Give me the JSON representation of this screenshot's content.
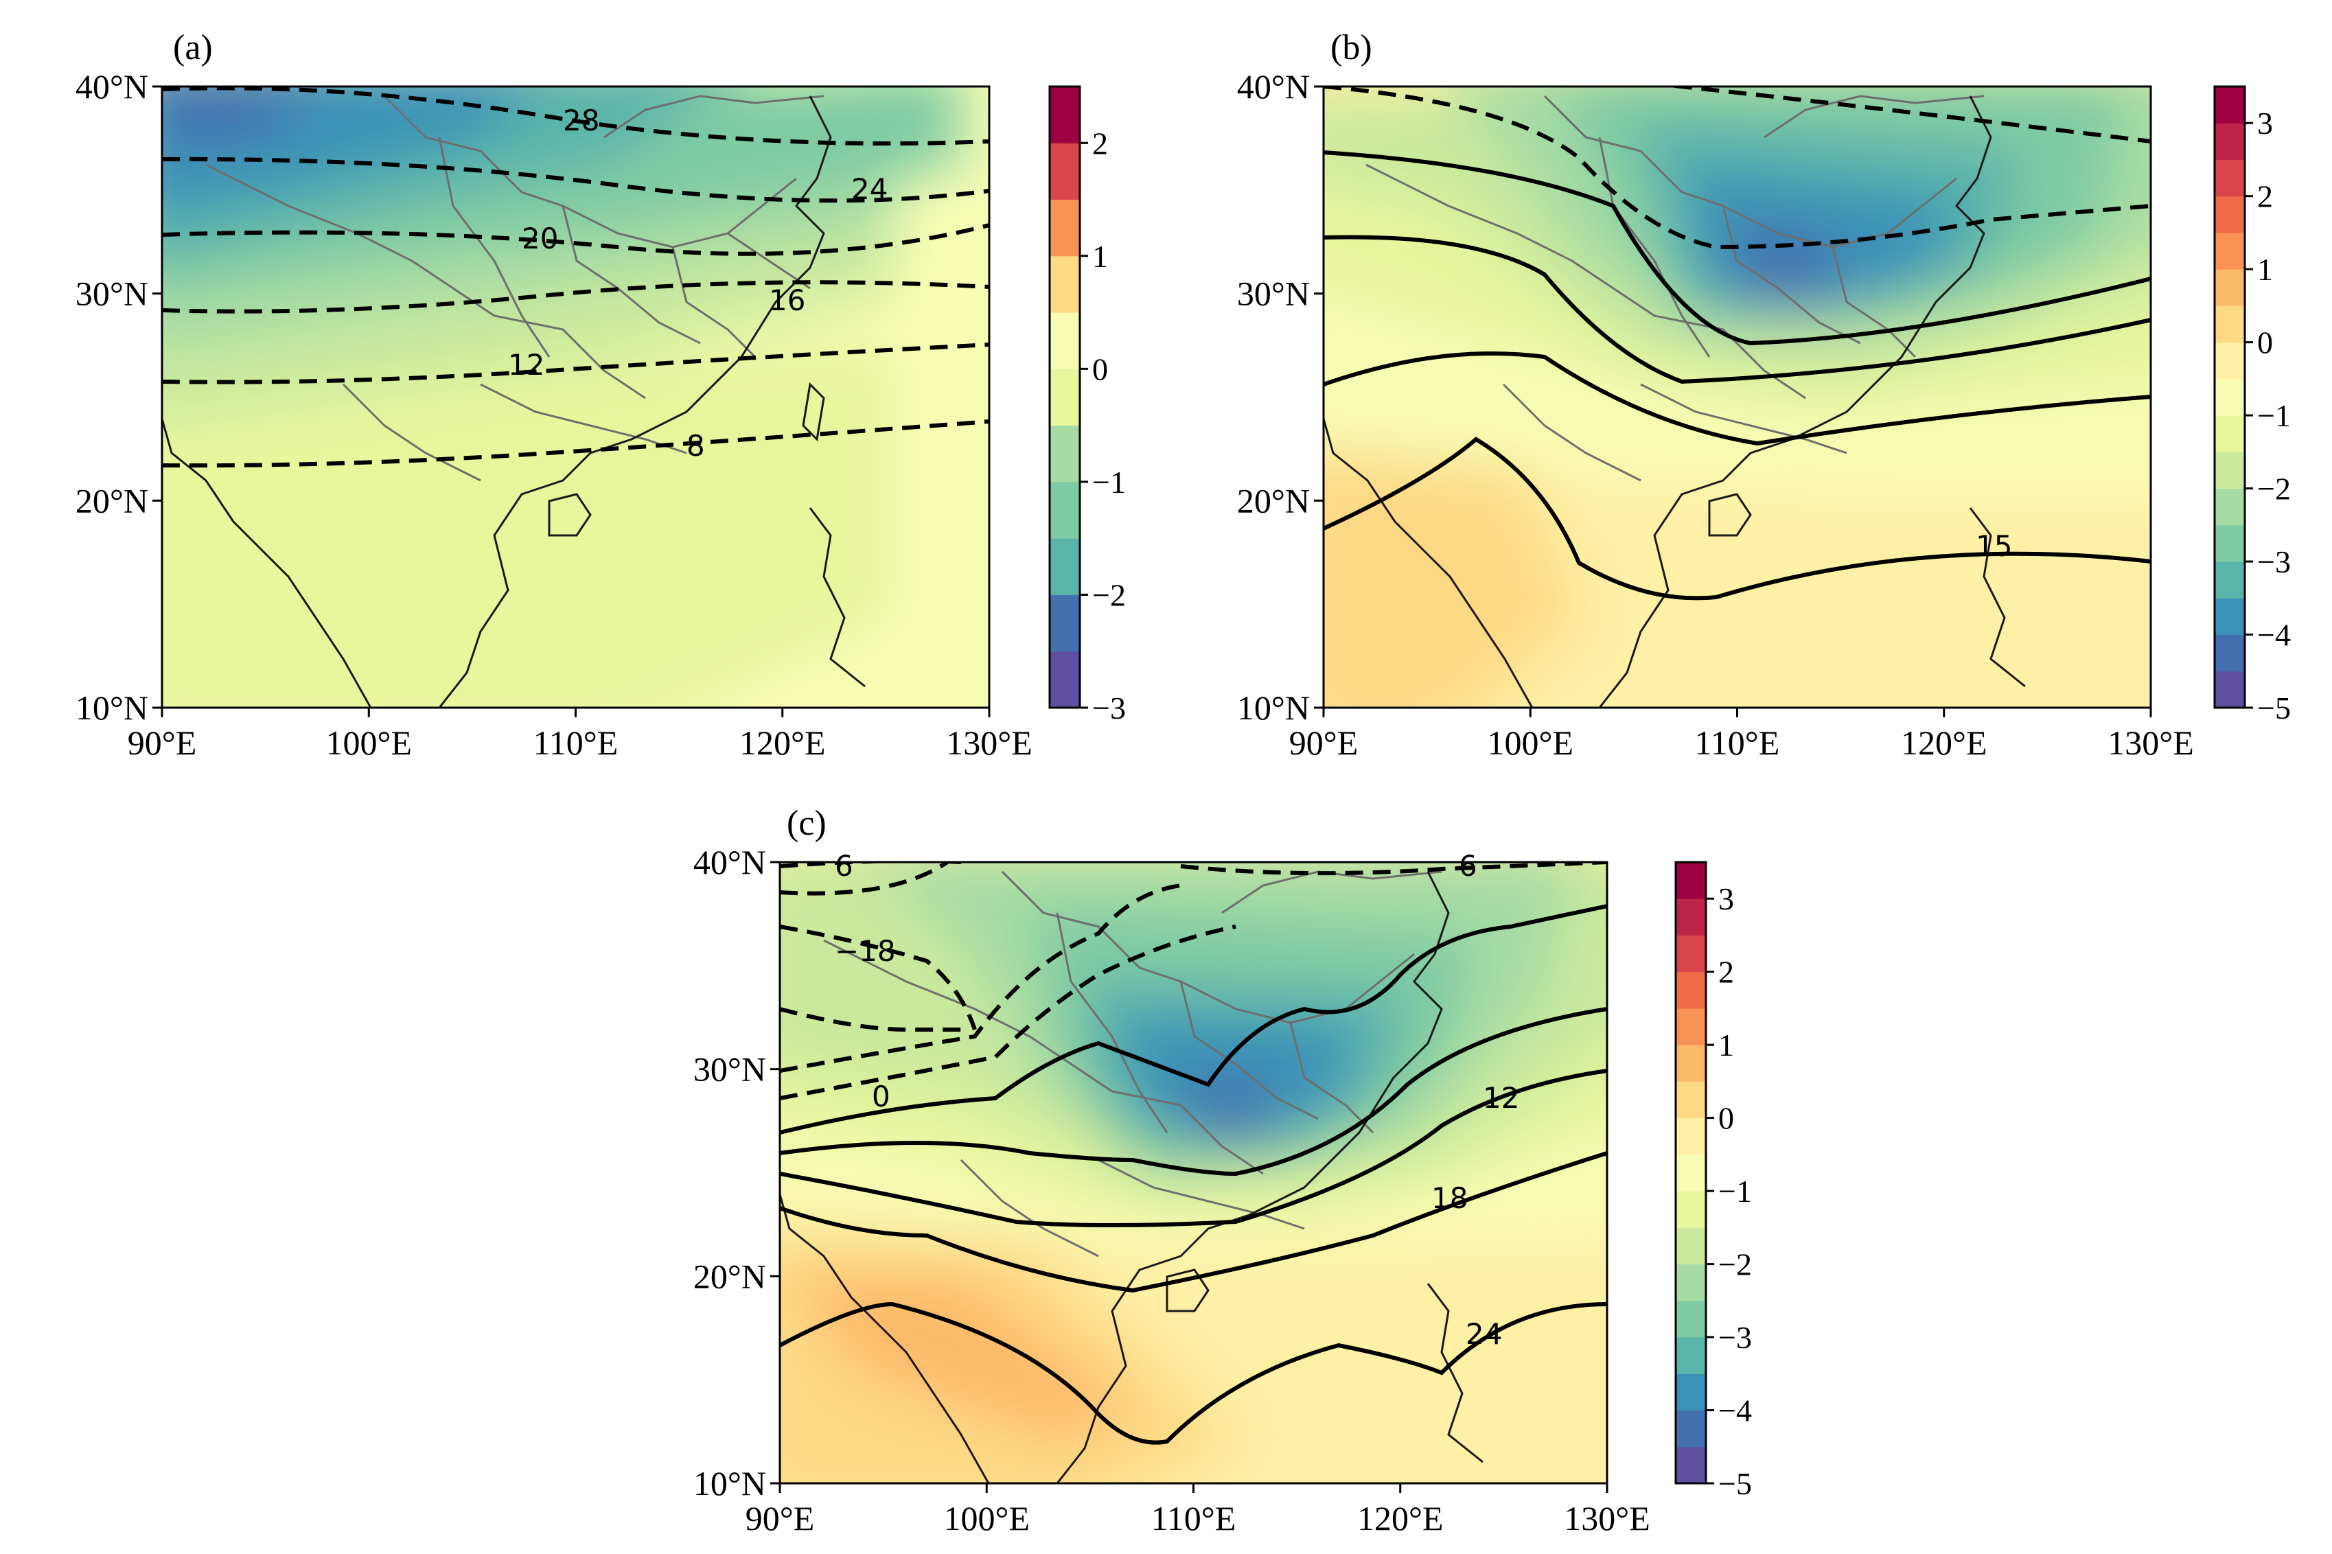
{
  "colors": {
    "levels": [
      "#5e4fa2",
      "#4470b1",
      "#3b92b8",
      "#59b4aa",
      "#7ecba4",
      "#a6dba4",
      "#cae99d",
      "#e8f69c",
      "#f7fcb3",
      "#fef0a5",
      "#fdd985",
      "#fdb96a",
      "#f99355",
      "#ef6a45",
      "#da464c",
      "#be2449",
      "#9e0142"
    ],
    "contour": "#000000",
    "border": "#6e6e6e",
    "coast": "#1a1a1a"
  },
  "panels": [
    {
      "id": "a",
      "label": "(a)",
      "x_ticks": [
        "90°E",
        "100°E",
        "110°E",
        "120°E",
        "130°E"
      ],
      "y_ticks": [
        "10°N",
        "20°N",
        "30°N",
        "40°N"
      ],
      "colorbar": {
        "min": -3,
        "max": 2.5,
        "step": 0.5,
        "tick_labels": [
          "−3",
          "−2",
          "−1",
          "0",
          "1",
          "2"
        ],
        "tick_values": [
          -3,
          -2,
          -1,
          0,
          1,
          2
        ]
      },
      "contour_labels": [
        "28",
        "24",
        "20",
        "16",
        "12",
        "8"
      ]
    },
    {
      "id": "b",
      "label": "(b)",
      "x_ticks": [
        "90°E",
        "100°E",
        "110°E",
        "120°E",
        "130°E"
      ],
      "y_ticks": [
        "10°N",
        "20°N",
        "30°N",
        "40°N"
      ],
      "colorbar": {
        "min": -5,
        "max": 3.5,
        "step": 0.5,
        "tick_labels": [
          "−5",
          "−4",
          "−3",
          "−2",
          "−1",
          "0",
          "1",
          "2",
          "3"
        ],
        "tick_values": [
          -5,
          -4,
          -3,
          -2,
          -1,
          0,
          1,
          2,
          3
        ]
      },
      "contour_labels": [
        "15"
      ]
    },
    {
      "id": "c",
      "label": "(c)",
      "x_ticks": [
        "90°E",
        "100°E",
        "110°E",
        "120°E",
        "130°E"
      ],
      "y_ticks": [
        "10°N",
        "20°N",
        "30°N",
        "40°N"
      ],
      "colorbar": {
        "min": -5,
        "max": 3.5,
        "step": 0.5,
        "tick_labels": [
          "−5",
          "−4",
          "−3",
          "−2",
          "−1",
          "0",
          "1",
          "2",
          "3"
        ],
        "tick_values": [
          -5,
          -4,
          -3,
          -2,
          -1,
          0,
          1,
          2,
          3
        ]
      },
      "contour_labels": [
        "6",
        "−18",
        "0",
        "12",
        "18",
        "24",
        "6"
      ]
    }
  ]
}
